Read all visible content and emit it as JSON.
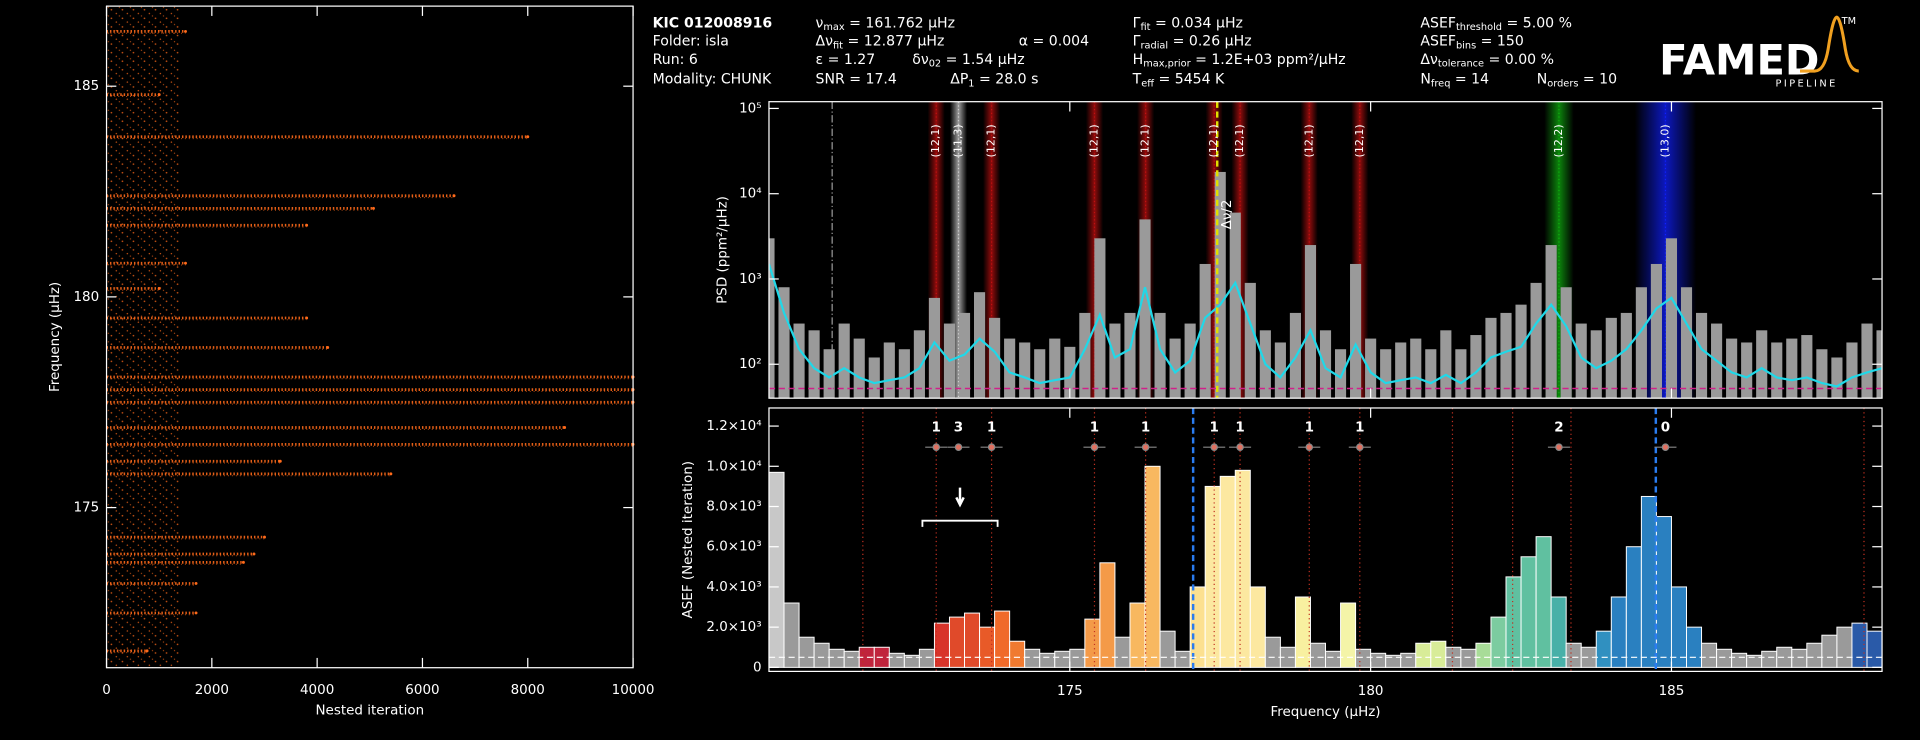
{
  "header": [
    {
      "text": "KIC 012008916"
    },
    {
      "text": "Folder: isla"
    },
    {
      "text": "Run: 6"
    },
    {
      "text": "Modality: CHUNK"
    },
    {
      "text": "ν",
      "sub": "max",
      "after": " = 161.762 μHz"
    },
    {
      "text": "Δν",
      "sub": "fit",
      "after": " = 12.877 μHz"
    },
    {
      "text": "α = 0.004"
    },
    {
      "text": "ε = 1.27"
    },
    {
      "text": "δν",
      "sub": "02",
      "after": " = 1.54 μHz"
    },
    {
      "text": "SNR = 17.4"
    },
    {
      "text": "ΔP",
      "sub": "1",
      "after": " = 28.0 s"
    },
    {
      "text": "Γ",
      "sub": "fit",
      "after": " = 0.034 μHz"
    },
    {
      "text": "Γ",
      "sub": "radial",
      "after": " = 0.26 μHz"
    },
    {
      "text": "H",
      "sub": "max,prior",
      "after": " = 1.2E+03 ppm²/μHz"
    },
    {
      "text": "T",
      "sub": "eff",
      "after": " = 5454 K"
    },
    {
      "text": "ASEF",
      "sub": "threshold",
      "after": " = 5.00 %"
    },
    {
      "text": "ASEF",
      "sub": "bins",
      "after": " = 150"
    },
    {
      "text": "Δν",
      "sub": "tolerance",
      "after": " = 0.00 %"
    },
    {
      "text": "N",
      "sub": "freq",
      "after": " = 14"
    },
    {
      "text": "N",
      "sub": "orders",
      "after": " = 10"
    }
  ],
  "logo": {
    "name": "FAMED",
    "subtitle": "PIPELINE",
    "mark": "TM"
  },
  "chart_data": [
    {
      "type": "scatter",
      "x_label": "Nested iteration",
      "y_label": "Frequency (μHz)",
      "color": "#ff6a1a",
      "x": [
        8000,
        6600,
        5070,
        3800,
        3800,
        4200,
        10000,
        10000,
        10000,
        8700,
        10000,
        3300,
        5400,
        3000,
        2800,
        2600,
        1700,
        1700,
        770,
        1500,
        1000,
        1500,
        1000
      ],
      "y": [
        183.8,
        182.4,
        182.1,
        181.7,
        179.5,
        178.8,
        178.1,
        177.8,
        177.5,
        176.9,
        176.5,
        176.1,
        175.8,
        174.3,
        173.9,
        173.7,
        173.2,
        172.5,
        171.6,
        186.3,
        184.8,
        180.8,
        180.2
      ],
      "xlim": [
        0,
        10000
      ],
      "ylim": [
        171.2,
        186.9
      ],
      "xticks": [
        0,
        2000,
        4000,
        6000,
        8000,
        10000
      ],
      "yticks": [
        175,
        180,
        185
      ]
    },
    {
      "type": "line",
      "y_label": "PSD (ppm²/μHz)",
      "log_y": true,
      "x": [
        170,
        170.25,
        170.5,
        170.75,
        171,
        171.25,
        171.5,
        171.75,
        172,
        172.25,
        172.5,
        172.75,
        173,
        173.25,
        173.5,
        173.75,
        174,
        174.25,
        174.5,
        174.75,
        175,
        175.25,
        175.5,
        175.75,
        176,
        176.25,
        176.5,
        176.75,
        177,
        177.25,
        177.5,
        177.75,
        178,
        178.25,
        178.5,
        178.75,
        179,
        179.25,
        179.5,
        179.75,
        180,
        180.25,
        180.5,
        180.75,
        181,
        181.25,
        181.5,
        181.75,
        182,
        182.25,
        182.5,
        182.75,
        183,
        183.25,
        183.5,
        183.75,
        184,
        184.25,
        184.5,
        184.75,
        185,
        185.25,
        185.5,
        185.75,
        186,
        186.25,
        186.5,
        186.75,
        187,
        187.25,
        187.5,
        187.75,
        188,
        188.25,
        188.5
      ],
      "series": [
        {
          "draw": "spikes",
          "color": "#9a9a9a",
          "values": [
            3000,
            800,
            300,
            250,
            150,
            300,
            200,
            120,
            180,
            150,
            250,
            600,
            300,
            400,
            700,
            350,
            200,
            180,
            150,
            200,
            160,
            400,
            3000,
            300,
            400,
            5000,
            400,
            200,
            300,
            1500,
            18000,
            6000,
            900,
            250,
            180,
            400,
            2500,
            250,
            150,
            1500,
            200,
            150,
            180,
            200,
            150,
            250,
            150,
            220,
            350,
            400,
            500,
            900,
            2500,
            800,
            300,
            250,
            350,
            400,
            800,
            1500,
            3000,
            800,
            400,
            300,
            200,
            180,
            250,
            180,
            200,
            220,
            150,
            120,
            180,
            300,
            250
          ]
        },
        {
          "draw": "line",
          "color": "#20d8e8",
          "values": [
            1500,
            400,
            150,
            90,
            70,
            90,
            70,
            60,
            65,
            70,
            90,
            180,
            110,
            130,
            200,
            140,
            80,
            70,
            60,
            65,
            70,
            150,
            380,
            120,
            150,
            800,
            150,
            80,
            110,
            350,
            500,
            900,
            300,
            100,
            70,
            120,
            250,
            90,
            70,
            170,
            80,
            60,
            65,
            70,
            60,
            75,
            60,
            80,
            120,
            140,
            160,
            300,
            500,
            280,
            120,
            90,
            110,
            150,
            250,
            450,
            600,
            300,
            150,
            110,
            80,
            70,
            90,
            70,
            65,
            70,
            60,
            55,
            70,
            80,
            90
          ]
        }
      ],
      "background": 52,
      "background_color": "#d0208a",
      "modes": [
        {
          "frequency": 172.78,
          "label": "(12,1)",
          "degree": 1,
          "color": "#c01010"
        },
        {
          "frequency": 173.15,
          "label": "(11,3)",
          "degree": 3,
          "color": "#d0d0d0"
        },
        {
          "frequency": 173.7,
          "label": "(12,1)",
          "degree": 1,
          "color": "#c01010"
        },
        {
          "frequency": 175.41,
          "label": "(12,1)",
          "degree": 1,
          "color": "#c01010"
        },
        {
          "frequency": 176.26,
          "label": "(12,1)",
          "degree": 1,
          "color": "#c01010"
        },
        {
          "frequency": 177.4,
          "label": "(12,1)",
          "degree": 1,
          "color": "#c01010"
        },
        {
          "frequency": 177.83,
          "label": "(12,1)",
          "degree": 1,
          "color": "#c01010"
        },
        {
          "frequency": 178.98,
          "label": "(12,1)",
          "degree": 1,
          "color": "#c01010"
        },
        {
          "frequency": 179.82,
          "label": "(12,1)",
          "degree": 1,
          "color": "#c01010"
        },
        {
          "frequency": 183.13,
          "label": "(12,2)",
          "degree": 2,
          "color": "#10b010"
        },
        {
          "frequency": 184.9,
          "label": "(13,0)",
          "degree": 0,
          "color": "#1020ff"
        }
      ],
      "lines": [
        {
          "frequency": 171.05,
          "color": "#9a9a9a"
        },
        {
          "frequency": 177.45,
          "label": "Δν/2",
          "color": "#e0e000"
        }
      ],
      "xlim": [
        170,
        188.5
      ],
      "ylim": [
        40,
        120000
      ],
      "yticks": [
        {
          "value": 100,
          "label": "10²"
        },
        {
          "value": 1000,
          "label": "10³"
        },
        {
          "value": 10000,
          "label": "10⁴"
        },
        {
          "value": 100000,
          "label": "10⁵"
        }
      ]
    },
    {
      "type": "histogram",
      "x_label": "Frequency (μHz)",
      "y_label": "ASEF (Nested iteration)",
      "bins": [
        170,
        170.25,
        170.5,
        170.75,
        171,
        171.25,
        171.5,
        171.75,
        172,
        172.25,
        172.5,
        172.75,
        173,
        173.25,
        173.5,
        173.75,
        174,
        174.25,
        174.5,
        174.75,
        175,
        175.25,
        175.5,
        175.75,
        176,
        176.25,
        176.5,
        176.75,
        177,
        177.25,
        177.5,
        177.75,
        178,
        178.25,
        178.5,
        178.75,
        179,
        179.25,
        179.5,
        179.75,
        180,
        180.25,
        180.5,
        180.75,
        181,
        181.25,
        181.5,
        181.75,
        182,
        182.25,
        182.5,
        182.75,
        183,
        183.25,
        183.5,
        183.75,
        184,
        184.25,
        184.5,
        184.75,
        185,
        185.25,
        185.5,
        185.75,
        186,
        186.25,
        186.5,
        186.75,
        187,
        187.25,
        187.5,
        187.75,
        188,
        188.25,
        188.5
      ],
      "values": [
        9700,
        3200,
        1500,
        1200,
        900,
        800,
        1000,
        1000,
        700,
        600,
        900,
        2200,
        2500,
        2700,
        2000,
        2800,
        1300,
        900,
        700,
        800,
        900,
        2400,
        5200,
        1500,
        3200,
        10000,
        1800,
        800,
        4000,
        9000,
        9500,
        9800,
        4000,
        1500,
        1000,
        3500,
        1200,
        800,
        3200,
        900,
        700,
        600,
        700,
        1200,
        1300,
        1000,
        900,
        1200,
        2500,
        4500,
        5500,
        6500,
        3500,
        1200,
        1000,
        1800,
        3500,
        6000,
        8500,
        7500,
        4000,
        2000,
        1200,
        900,
        700,
        600,
        800,
        1000,
        900,
        1200,
        1600,
        2000,
        2200,
        1800
      ],
      "colors": [
        "#c8c8c8",
        "#9a9a9a",
        "#9a9a9a",
        "#9a9a9a",
        "#9a9a9a",
        "#9a9a9a",
        "#c0243c",
        "#c0243c",
        "#9a9a9a",
        "#9a9a9a",
        "#9a9a9a",
        "#d8342a",
        "#e04a2a",
        "#e04a2a",
        "#e85a28",
        "#f06a2a",
        "#f07a30",
        "#9a9a9a",
        "#9a9a9a",
        "#9a9a9a",
        "#9a9a9a",
        "#f49a48",
        "#f49a48",
        "#9a9a9a",
        "#f8b860",
        "#f8b860",
        "#9a9a9a",
        "#9a9a9a",
        "#fce090",
        "#fce8a0",
        "#fce8a0",
        "#fce8a0",
        "#fce8a0",
        "#9a9a9a",
        "#9a9a9a",
        "#f8f0a0",
        "#9a9a9a",
        "#9a9a9a",
        "#f4f4a8",
        "#9a9a9a",
        "#9a9a9a",
        "#9a9a9a",
        "#9a9a9a",
        "#d8ec98",
        "#d8ec98",
        "#9a9a9a",
        "#9a9a9a",
        "#a8dc98",
        "#7ccca0",
        "#60c0a0",
        "#60c0a0",
        "#60c0a0",
        "#48b0a8",
        "#9a9a9a",
        "#9a9a9a",
        "#3090c0",
        "#2a80c0",
        "#2a80c0",
        "#2a80c0",
        "#2a80c0",
        "#2a80c0",
        "#2a80c0",
        "#9a9a9a",
        "#9a9a9a",
        "#9a9a9a",
        "#9a9a9a",
        "#9a9a9a",
        "#9a9a9a",
        "#9a9a9a",
        "#9a9a9a",
        "#9a9a9a",
        "#9a9a9a",
        "#2a5aa8",
        "#2a5aa8"
      ],
      "threshold": 500,
      "dashed_lines": [
        177.05,
        184.74
      ],
      "separators": [
        171.56,
        172.78,
        173.7,
        175.41,
        176.26,
        177.4,
        177.83,
        178.98,
        179.82,
        181.36,
        182.36,
        183.33,
        188.2
      ],
      "bracket": [
        172.55,
        173.8
      ],
      "xlim": [
        170,
        188.5
      ],
      "ylim": [
        -200,
        12900
      ],
      "xticks": [
        175,
        180,
        185
      ],
      "yticks": [
        0,
        {
          "value": 2000,
          "label": "2.0×10³"
        },
        {
          "value": 4000,
          "label": "4.0×10³"
        },
        {
          "value": 6000,
          "label": "6.0×10³"
        },
        {
          "value": 8000,
          "label": "8.0×10³"
        },
        {
          "value": 10000,
          "label": "1.0×10⁴"
        },
        {
          "value": 12000,
          "label": "1.2×10⁴"
        }
      ]
    }
  ]
}
